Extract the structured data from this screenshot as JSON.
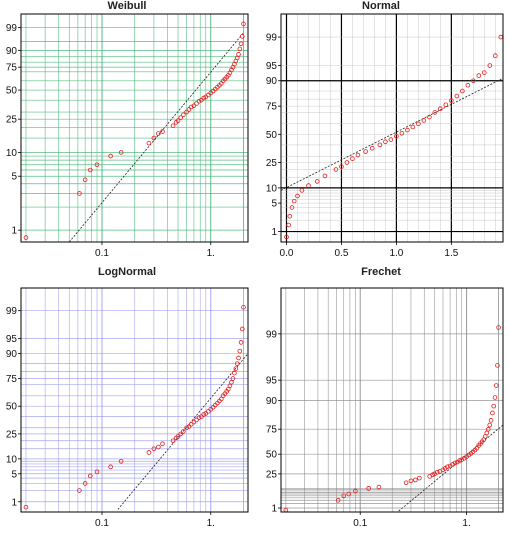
{
  "chart_data": [
    {
      "type": "scatter",
      "title": "Weibull",
      "xscale": "log",
      "yscale": "weibull",
      "xlim": [
        0.018,
        2.2
      ],
      "ylim": [
        0.7,
        99.9
      ],
      "xticks": [
        {
          "value": 0.1,
          "label": "0.1"
        },
        {
          "value": 1,
          "label": "1."
        }
      ],
      "yticks": [
        {
          "value": 1,
          "label": "1"
        },
        {
          "value": 5,
          "label": "5"
        },
        {
          "value": 10,
          "label": "10"
        },
        {
          "value": 25,
          "label": "25"
        },
        {
          "value": 50,
          "label": "50"
        },
        {
          "value": 75,
          "label": "75"
        },
        {
          "value": 90,
          "label": "90"
        },
        {
          "value": 99,
          "label": "99"
        }
      ],
      "grid_color": "#3cb371",
      "reference_line": [
        [
          0.05,
          0.7
        ],
        [
          2.0,
          98
        ]
      ],
      "points": [
        [
          0.02,
          0.8
        ],
        [
          0.062,
          3
        ],
        [
          0.07,
          4.5
        ],
        [
          0.078,
          6
        ],
        [
          0.09,
          7
        ],
        [
          0.12,
          9
        ],
        [
          0.15,
          10
        ],
        [
          0.27,
          13
        ],
        [
          0.3,
          15
        ],
        [
          0.33,
          17
        ],
        [
          0.36,
          18
        ],
        [
          0.45,
          21
        ],
        [
          0.48,
          23
        ],
        [
          0.5,
          24
        ],
        [
          0.53,
          26
        ],
        [
          0.56,
          28
        ],
        [
          0.6,
          30
        ],
        [
          0.63,
          32
        ],
        [
          0.66,
          34
        ],
        [
          0.7,
          35
        ],
        [
          0.74,
          37
        ],
        [
          0.78,
          39
        ],
        [
          0.82,
          40
        ],
        [
          0.86,
          42
        ],
        [
          0.9,
          43
        ],
        [
          0.95,
          45
        ],
        [
          1.0,
          47
        ],
        [
          1.05,
          49
        ],
        [
          1.1,
          51
        ],
        [
          1.15,
          53
        ],
        [
          1.2,
          55
        ],
        [
          1.25,
          57
        ],
        [
          1.3,
          60
        ],
        [
          1.35,
          62
        ],
        [
          1.4,
          64
        ],
        [
          1.45,
          66
        ],
        [
          1.5,
          69
        ],
        [
          1.55,
          72
        ],
        [
          1.6,
          75
        ],
        [
          1.65,
          78
        ],
        [
          1.7,
          81
        ],
        [
          1.75,
          84
        ],
        [
          1.8,
          87
        ],
        [
          1.85,
          91
        ],
        [
          1.9,
          94
        ],
        [
          1.95,
          97
        ],
        [
          2.0,
          99.4
        ]
      ]
    },
    {
      "type": "scatter",
      "title": "Normal",
      "xscale": "linear",
      "yscale": "normal",
      "xlim": [
        -0.05,
        1.97
      ],
      "ylim": [
        0.5,
        99.8
      ],
      "xticks": [
        {
          "value": 0.0,
          "label": "0.0"
        },
        {
          "value": 0.5,
          "label": "0.5"
        },
        {
          "value": 1.0,
          "label": "1.0"
        },
        {
          "value": 1.5,
          "label": "1.5"
        }
      ],
      "yticks": [
        {
          "value": 1,
          "label": "1"
        },
        {
          "value": 5,
          "label": "5"
        },
        {
          "value": 10,
          "label": "10"
        },
        {
          "value": 25,
          "label": "25"
        },
        {
          "value": 50,
          "label": "50"
        },
        {
          "value": 75,
          "label": "75"
        },
        {
          "value": 90,
          "label": "90"
        },
        {
          "value": 95,
          "label": "95"
        },
        {
          "value": 99,
          "label": "99"
        }
      ],
      "grid_color": "#000000",
      "reference_line": [
        [
          -0.05,
          9
        ],
        [
          1.97,
          91
        ]
      ],
      "points": [
        [
          0.0,
          0.7
        ],
        [
          0.02,
          1.5
        ],
        [
          0.03,
          2.5
        ],
        [
          0.05,
          4
        ],
        [
          0.07,
          5.5
        ],
        [
          0.1,
          7
        ],
        [
          0.14,
          9
        ],
        [
          0.2,
          11
        ],
        [
          0.28,
          13
        ],
        [
          0.35,
          16
        ],
        [
          0.45,
          20
        ],
        [
          0.5,
          22
        ],
        [
          0.55,
          25
        ],
        [
          0.6,
          28
        ],
        [
          0.65,
          31
        ],
        [
          0.72,
          34
        ],
        [
          0.78,
          37
        ],
        [
          0.85,
          40
        ],
        [
          0.9,
          43
        ],
        [
          0.95,
          45
        ],
        [
          1.0,
          48
        ],
        [
          1.05,
          51
        ],
        [
          1.1,
          54
        ],
        [
          1.15,
          57
        ],
        [
          1.2,
          60
        ],
        [
          1.25,
          63
        ],
        [
          1.3,
          66
        ],
        [
          1.35,
          70
        ],
        [
          1.4,
          73
        ],
        [
          1.45,
          76
        ],
        [
          1.5,
          79
        ],
        [
          1.55,
          82
        ],
        [
          1.6,
          85
        ],
        [
          1.65,
          88
        ],
        [
          1.7,
          90
        ],
        [
          1.75,
          92
        ],
        [
          1.8,
          93
        ],
        [
          1.85,
          95
        ],
        [
          1.9,
          97
        ],
        [
          1.95,
          99
        ]
      ]
    },
    {
      "type": "scatter",
      "title": "LogNormal",
      "xscale": "log",
      "yscale": "normal",
      "xlim": [
        0.018,
        2.2
      ],
      "ylim": [
        0.5,
        99.8
      ],
      "xticks": [
        {
          "value": 0.1,
          "label": "0.1"
        },
        {
          "value": 1,
          "label": "1."
        }
      ],
      "yticks": [
        {
          "value": 1,
          "label": "1"
        },
        {
          "value": 5,
          "label": "5"
        },
        {
          "value": 10,
          "label": "10"
        },
        {
          "value": 25,
          "label": "25"
        },
        {
          "value": 50,
          "label": "50"
        },
        {
          "value": 75,
          "label": "75"
        },
        {
          "value": 90,
          "label": "90"
        },
        {
          "value": 95,
          "label": "95"
        },
        {
          "value": 99,
          "label": "99"
        }
      ],
      "grid_color": "#9999ee",
      "reference_line": [
        [
          0.14,
          0.6
        ],
        [
          2.2,
          90
        ]
      ],
      "points": [
        [
          0.02,
          0.7
        ],
        [
          0.062,
          2
        ],
        [
          0.07,
          3
        ],
        [
          0.078,
          4.5
        ],
        [
          0.09,
          5.5
        ],
        [
          0.12,
          7
        ],
        [
          0.15,
          9
        ],
        [
          0.27,
          13
        ],
        [
          0.3,
          15
        ],
        [
          0.33,
          16
        ],
        [
          0.36,
          18
        ],
        [
          0.45,
          20
        ],
        [
          0.48,
          22
        ],
        [
          0.5,
          23
        ],
        [
          0.53,
          25
        ],
        [
          0.56,
          27
        ],
        [
          0.6,
          30
        ],
        [
          0.63,
          31
        ],
        [
          0.66,
          33
        ],
        [
          0.7,
          35
        ],
        [
          0.74,
          37
        ],
        [
          0.78,
          39
        ],
        [
          0.82,
          40
        ],
        [
          0.86,
          42
        ],
        [
          0.9,
          43
        ],
        [
          0.95,
          45
        ],
        [
          1.0,
          47
        ],
        [
          1.05,
          49
        ],
        [
          1.1,
          51
        ],
        [
          1.15,
          53
        ],
        [
          1.2,
          55
        ],
        [
          1.25,
          57
        ],
        [
          1.3,
          60
        ],
        [
          1.35,
          62
        ],
        [
          1.4,
          64
        ],
        [
          1.45,
          66
        ],
        [
          1.5,
          69
        ],
        [
          1.55,
          72
        ],
        [
          1.6,
          75
        ],
        [
          1.65,
          79
        ],
        [
          1.7,
          82
        ],
        [
          1.75,
          85
        ],
        [
          1.8,
          88
        ],
        [
          1.85,
          91
        ],
        [
          1.9,
          94
        ],
        [
          1.95,
          97
        ],
        [
          2.0,
          99.2
        ]
      ]
    },
    {
      "type": "scatter",
      "title": "Frechet",
      "xscale": "log",
      "yscale": "frechet",
      "xlim": [
        0.018,
        2.2
      ],
      "ylim": [
        0.5,
        99.8
      ],
      "xticks": [
        {
          "value": 0.1,
          "label": "0.1"
        },
        {
          "value": 1,
          "label": "1."
        }
      ],
      "yticks": [
        {
          "value": 1,
          "label": "1"
        },
        {
          "value": 25,
          "label": "25"
        },
        {
          "value": 50,
          "label": "50"
        },
        {
          "value": 75,
          "label": "75"
        },
        {
          "value": 90,
          "label": "90"
        },
        {
          "value": 95,
          "label": "95"
        },
        {
          "value": 99,
          "label": "99"
        }
      ],
      "grid_color": "#888888",
      "reference_line": [
        [
          0.23,
          0.6
        ],
        [
          2.2,
          78
        ]
      ],
      "points": [
        [
          0.02,
          0.7
        ],
        [
          0.062,
          3
        ],
        [
          0.07,
          5
        ],
        [
          0.078,
          6
        ],
        [
          0.09,
          8
        ],
        [
          0.12,
          10
        ],
        [
          0.15,
          11
        ],
        [
          0.27,
          15
        ],
        [
          0.3,
          17
        ],
        [
          0.33,
          18
        ],
        [
          0.36,
          20
        ],
        [
          0.45,
          22
        ],
        [
          0.48,
          24
        ],
        [
          0.5,
          25
        ],
        [
          0.53,
          27
        ],
        [
          0.56,
          28
        ],
        [
          0.6,
          30
        ],
        [
          0.63,
          32
        ],
        [
          0.66,
          34
        ],
        [
          0.7,
          35
        ],
        [
          0.74,
          37
        ],
        [
          0.78,
          39
        ],
        [
          0.82,
          40
        ],
        [
          0.86,
          42
        ],
        [
          0.9,
          43
        ],
        [
          0.95,
          45
        ],
        [
          1.0,
          47
        ],
        [
          1.05,
          49
        ],
        [
          1.1,
          51
        ],
        [
          1.15,
          53
        ],
        [
          1.2,
          55
        ],
        [
          1.25,
          57
        ],
        [
          1.3,
          60
        ],
        [
          1.35,
          62
        ],
        [
          1.4,
          64
        ],
        [
          1.45,
          66
        ],
        [
          1.5,
          69
        ],
        [
          1.55,
          72
        ],
        [
          1.6,
          75
        ],
        [
          1.65,
          78
        ],
        [
          1.7,
          81
        ],
        [
          1.75,
          85
        ],
        [
          1.8,
          88
        ],
        [
          1.85,
          91
        ],
        [
          1.9,
          94
        ],
        [
          1.95,
          97
        ],
        [
          2.0,
          99.2
        ]
      ]
    }
  ]
}
